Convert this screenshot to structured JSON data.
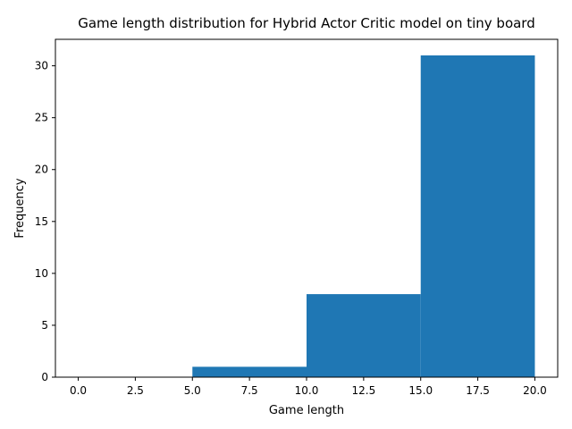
{
  "chart_data": {
    "type": "bar",
    "title": "Game length distribution for Hybrid Actor Critic model on tiny board",
    "xlabel": "Game length",
    "ylabel": "Frequency",
    "bins": [
      {
        "start": 0,
        "end": 5,
        "count": 0
      },
      {
        "start": 5,
        "end": 10,
        "count": 1
      },
      {
        "start": 10,
        "end": 15,
        "count": 8
      },
      {
        "start": 15,
        "end": 20,
        "count": 31
      }
    ],
    "xlim": [
      -1,
      21
    ],
    "ylim": [
      0,
      32.55
    ],
    "xticks": [
      0,
      2.5,
      5,
      7.5,
      10,
      12.5,
      15,
      17.5,
      20
    ],
    "xtick_labels": [
      "0.0",
      "2.5",
      "5.0",
      "7.5",
      "10.0",
      "12.5",
      "15.0",
      "17.5",
      "20.0"
    ],
    "yticks": [
      0,
      5,
      10,
      15,
      20,
      25,
      30
    ],
    "ytick_labels": [
      "0",
      "5",
      "10",
      "15",
      "20",
      "25",
      "30"
    ],
    "bar_color": "#1f77b4",
    "grid": false,
    "legend": "none"
  }
}
